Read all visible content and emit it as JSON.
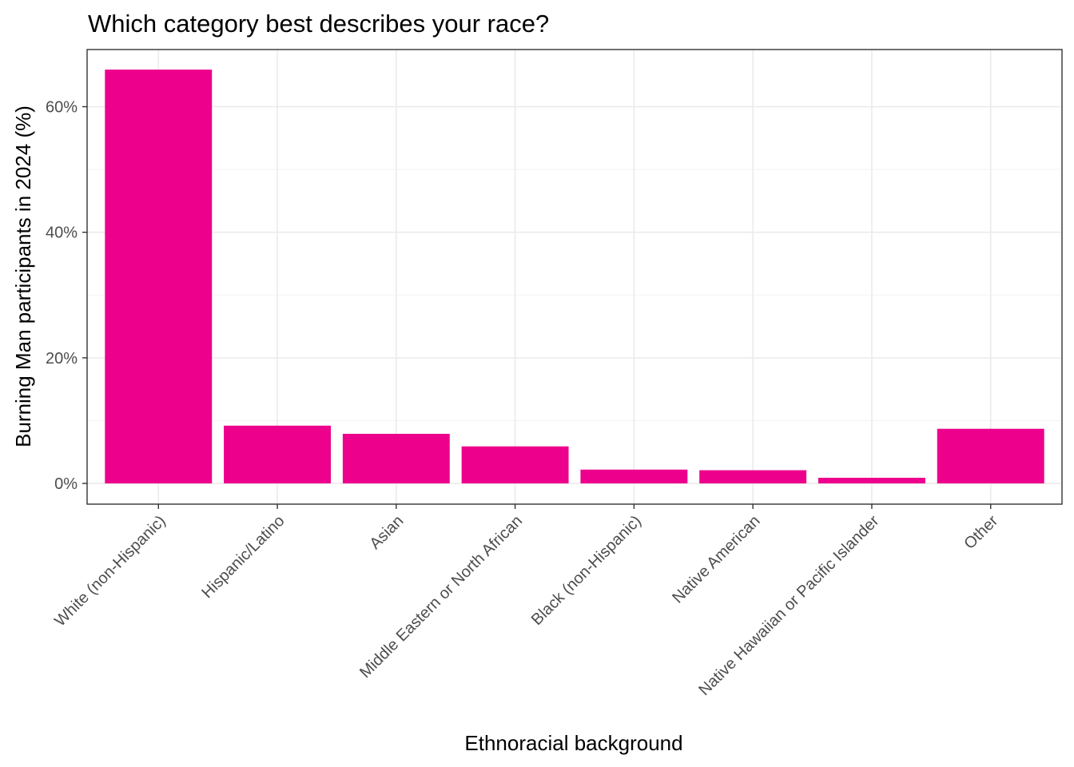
{
  "chart_data": {
    "type": "bar",
    "title": "Which category best describes your race?",
    "xlabel": "Ethnoracial background",
    "ylabel": "Burning Man participants in 2024 (%)",
    "categories": [
      "White (non-Hispanic)",
      "Hispanic/Latino",
      "Asian",
      "Middle Eastern or North African",
      "Black (non-Hispanic)",
      "Native American",
      "Native Hawaiian or Pacific Islander",
      "Other"
    ],
    "values": [
      65.9,
      9.2,
      7.9,
      5.9,
      2.2,
      2.1,
      0.9,
      8.7
    ],
    "unit": "%",
    "ylim": [
      -3.3,
      69.1
    ],
    "yticks": [
      0,
      20,
      40,
      60
    ],
    "ytick_labels": [
      "0%",
      "20%",
      "40%",
      "60%"
    ],
    "bar_color": "#EC008C",
    "grid": true,
    "legend": "none"
  }
}
